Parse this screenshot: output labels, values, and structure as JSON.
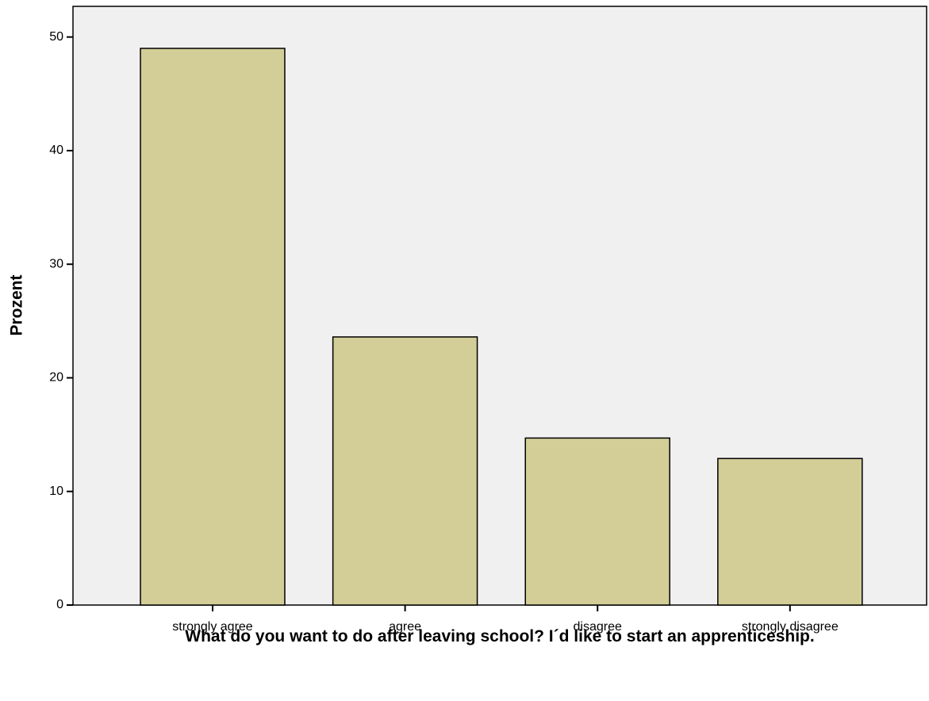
{
  "chart_data": {
    "type": "bar",
    "x_label": "What do you want to do after leaving school? I´d like to start an apprenticeship.",
    "y_label": "Prozent",
    "categories": [
      "strongly agree",
      "agree",
      "disagree",
      "strongly disagree"
    ],
    "values": [
      49.0,
      23.6,
      14.7,
      12.9
    ],
    "color": "#d3cd98",
    "ylim": [
      0,
      52.7
    ],
    "yticks": [
      0,
      10,
      20,
      30,
      40,
      50
    ],
    "grid": false
  }
}
